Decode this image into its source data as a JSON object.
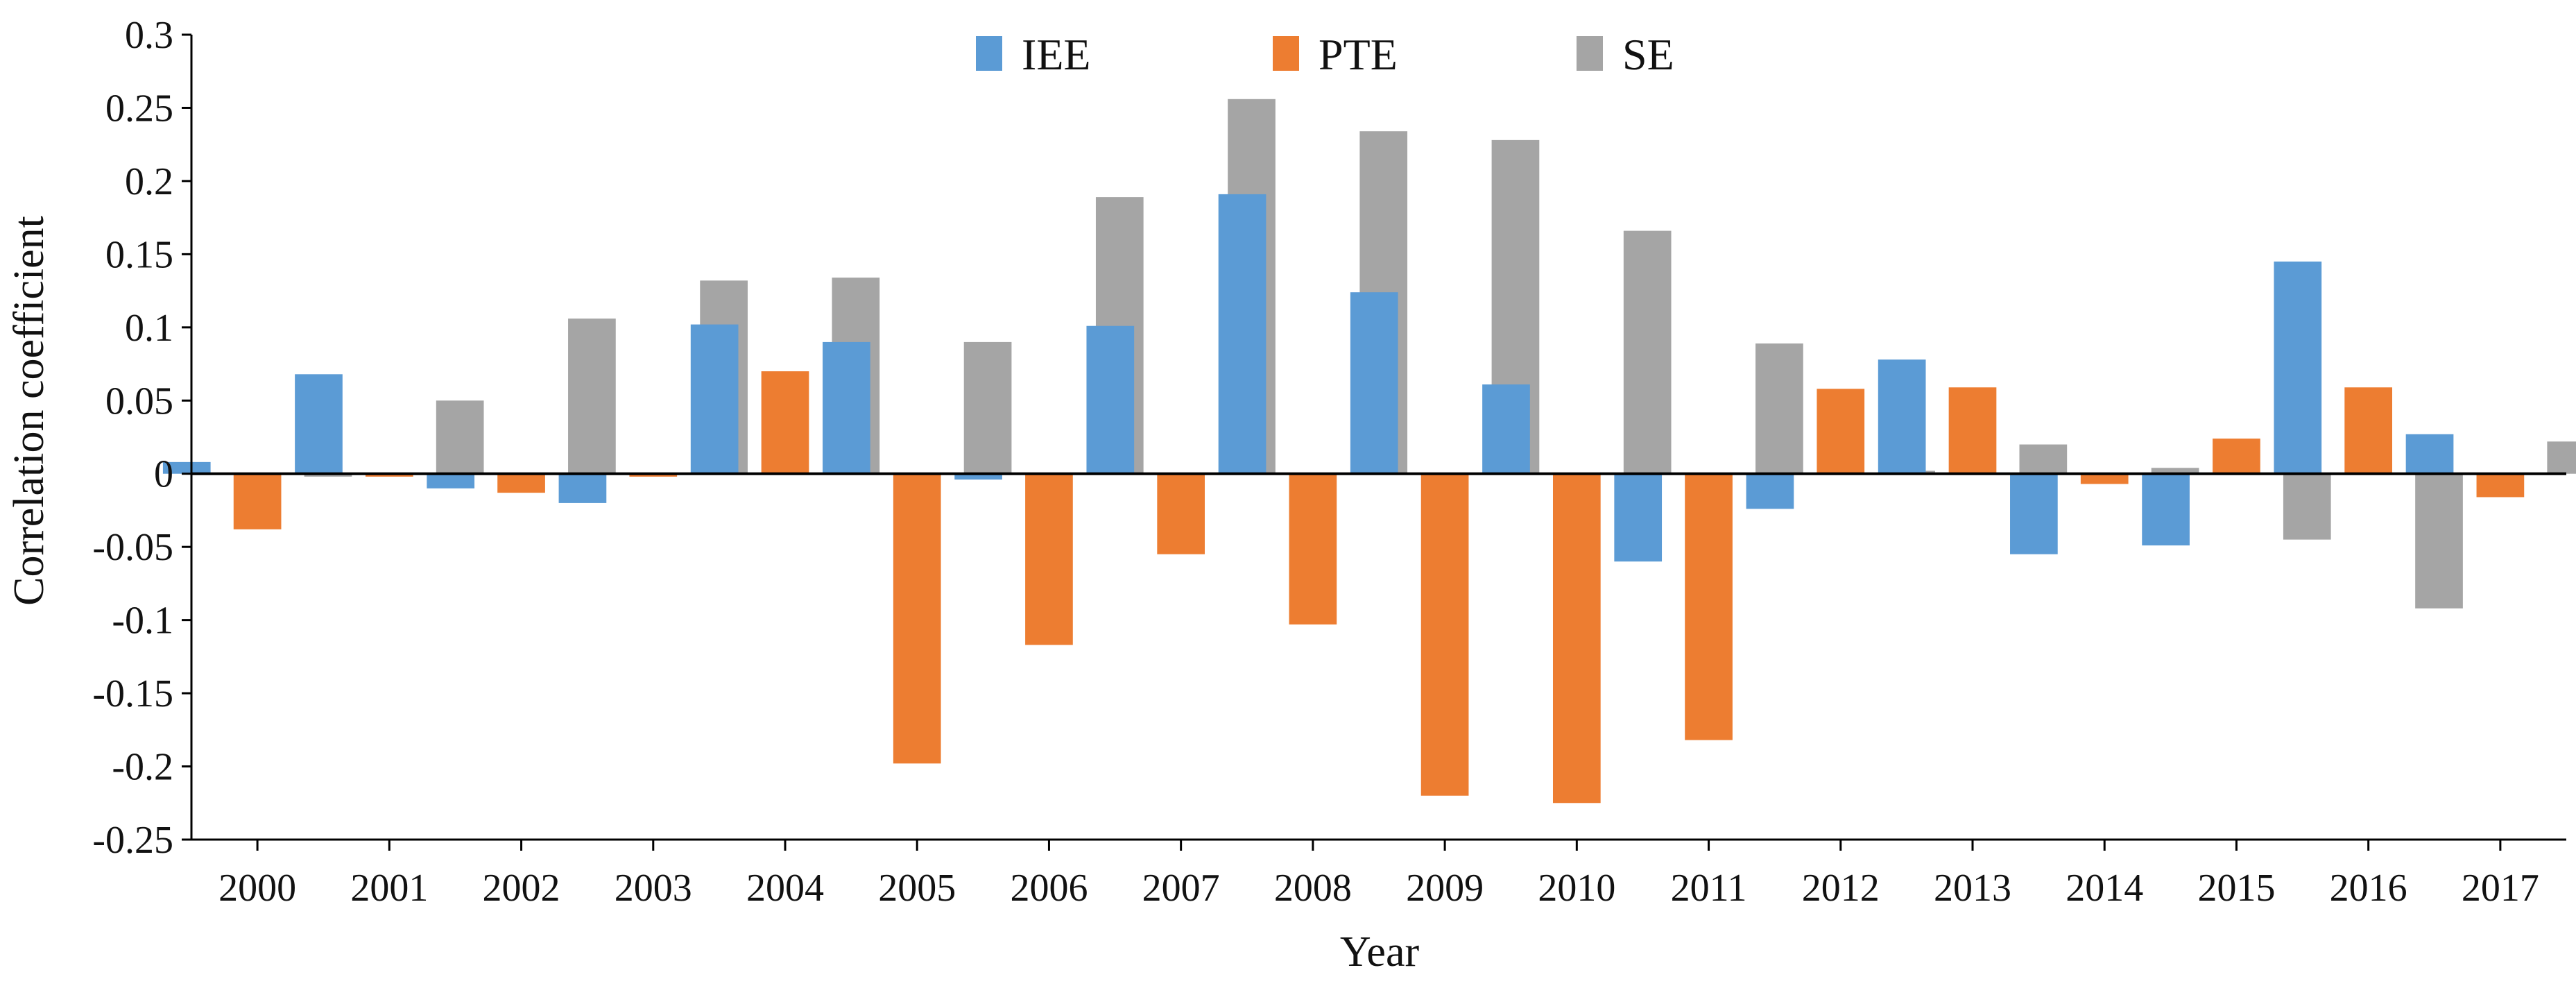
{
  "chart_data": {
    "type": "bar",
    "title": "",
    "xlabel": "Year",
    "ylabel": "Correlation coefficient",
    "ylim": [
      -0.25,
      0.3
    ],
    "yticks": [
      -0.25,
      -0.2,
      -0.15,
      -0.1,
      -0.05,
      0,
      0.05,
      0.1,
      0.15,
      0.2,
      0.25,
      0.3
    ],
    "ytick_labels": [
      "-0.25",
      "-0.2",
      "-0.15",
      "-0.1",
      "-0.05",
      "0",
      "0.05",
      "0.1",
      "0.15",
      "0.2",
      "0.25",
      "0.3"
    ],
    "categories": [
      "2000",
      "2001",
      "2002",
      "2003",
      "2004",
      "2005",
      "2006",
      "2007",
      "2008",
      "2009",
      "2010",
      "2011",
      "2012",
      "2013",
      "2014",
      "2015",
      "2016",
      "2017"
    ],
    "series": [
      {
        "name": "IEE",
        "color": "#5B9BD5",
        "values": [
          0.008,
          0.068,
          -0.01,
          -0.02,
          0.102,
          0.09,
          -0.004,
          0.101,
          0.191,
          0.124,
          0.061,
          -0.06,
          -0.024,
          0.078,
          -0.055,
          -0.049,
          0.145,
          0.027
        ]
      },
      {
        "name": "PTE",
        "color": "#ED7D31",
        "values": [
          -0.038,
          -0.002,
          -0.013,
          -0.002,
          0.07,
          -0.198,
          -0.117,
          -0.055,
          -0.103,
          -0.22,
          -0.225,
          -0.182,
          0.058,
          0.059,
          -0.007,
          0.024,
          0.059,
          -0.016
        ]
      },
      {
        "name": "SE",
        "color": "#A5A5A5",
        "values": [
          -0.002,
          0.05,
          0.106,
          0.132,
          0.134,
          0.09,
          0.189,
          0.256,
          0.234,
          0.228,
          0.166,
          0.089,
          0.002,
          0.02,
          0.004,
          -0.045,
          -0.092,
          0.022
        ]
      }
    ],
    "legend_position": "top-center",
    "grid": false
  }
}
